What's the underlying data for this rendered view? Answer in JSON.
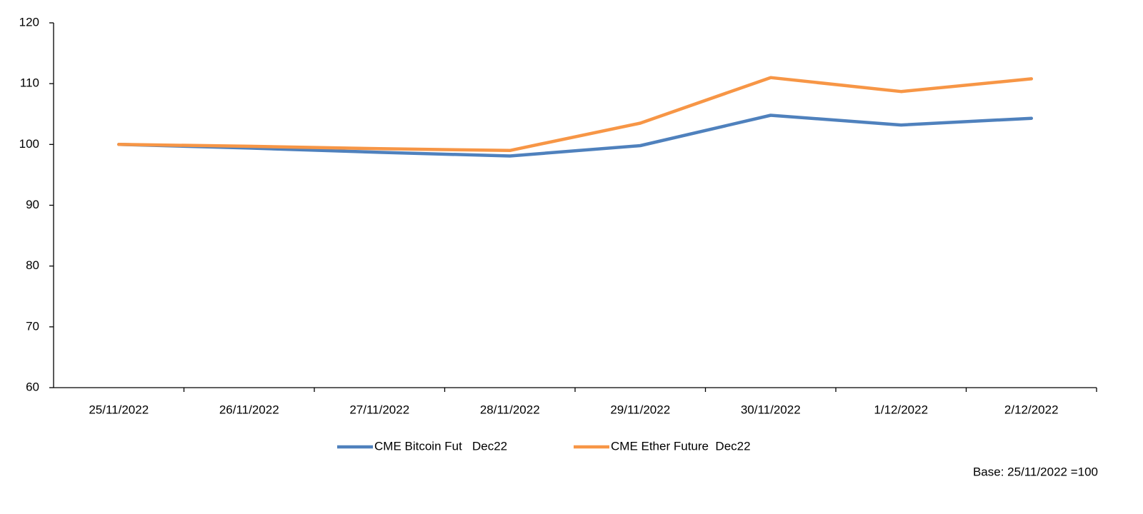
{
  "chart_data": {
    "type": "line",
    "categories": [
      "25/11/2022",
      "26/11/2022",
      "27/11/2022",
      "28/11/2022",
      "29/11/2022",
      "30/11/2022",
      "1/12/2022",
      "2/12/2022"
    ],
    "series": [
      {
        "name": "CME Bitcoin Fut   Dec22",
        "color": "#4f81bd",
        "values": [
          100,
          99.4,
          98.7,
          98.1,
          99.8,
          104.8,
          103.2,
          104.3
        ]
      },
      {
        "name": "CME Ether Future  Dec22",
        "color": "#f79646",
        "values": [
          100,
          99.7,
          99.3,
          99.0,
          103.5,
          111.0,
          108.7,
          110.8
        ]
      }
    ],
    "ylim": [
      60,
      120
    ],
    "yticks": [
      60,
      70,
      80,
      90,
      100,
      110,
      120
    ],
    "note": "Base:   25/11/2022 =100"
  }
}
